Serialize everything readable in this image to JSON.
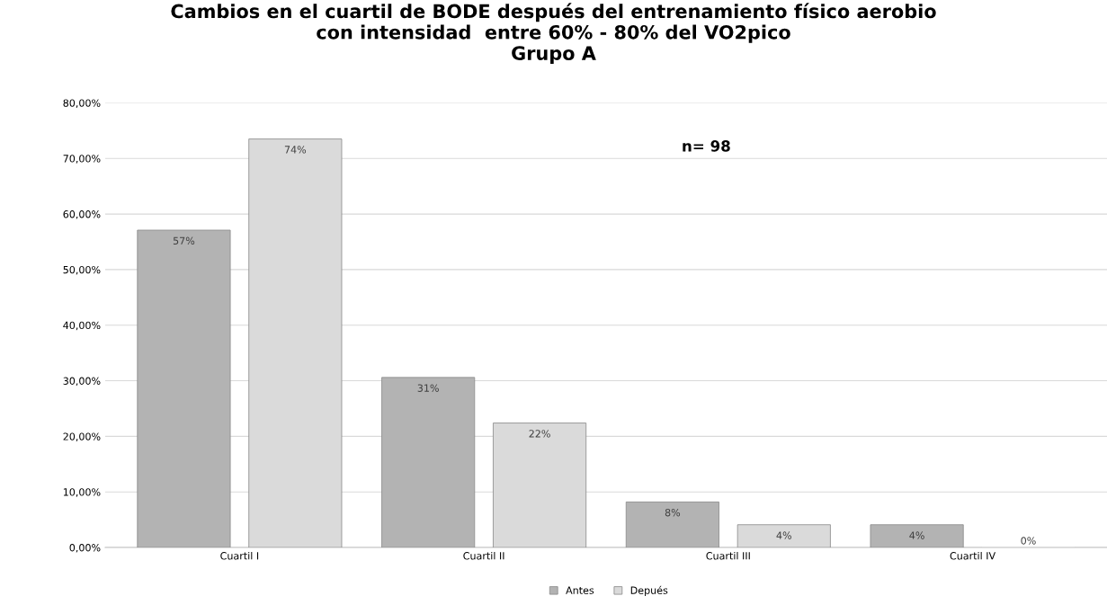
{
  "chart_data": {
    "type": "bar",
    "title": "Cambios en el cuartil de BODE después del entrenamiento físico aerobio\ncon intensidad  entre 60% - 80% del VO2pico\nGrupo A",
    "categories": [
      "Cuartil I",
      "Cuartil II",
      "Cuartil III",
      "Cuartil IV"
    ],
    "series": [
      {
        "name": "Antes",
        "color": "#b3b3b3",
        "values": [
          57.1,
          30.6,
          8.2,
          4.1
        ],
        "value_labels": [
          "57%",
          "31%",
          "8%",
          "4%"
        ]
      },
      {
        "name": "Depués",
        "color": "#dadada",
        "values": [
          73.5,
          22.4,
          4.1,
          0
        ],
        "value_labels": [
          "74%",
          "22%",
          "4%",
          "0%"
        ]
      }
    ],
    "ylim": [
      0,
      80
    ],
    "yticks": [
      {
        "value": 0,
        "label": "0,00%"
      },
      {
        "value": 10,
        "label": "10,00%"
      },
      {
        "value": 20,
        "label": "20,00%"
      },
      {
        "value": 30,
        "label": "30,00%"
      },
      {
        "value": 40,
        "label": "40,00%"
      },
      {
        "value": 50,
        "label": "50,00%"
      },
      {
        "value": 60,
        "label": "60,00%"
      },
      {
        "value": 70,
        "label": "70,00%"
      },
      {
        "value": 80,
        "label": "80,00%"
      }
    ],
    "annotations": [
      "n= 98"
    ],
    "grid": "y",
    "legend": "bottom"
  }
}
